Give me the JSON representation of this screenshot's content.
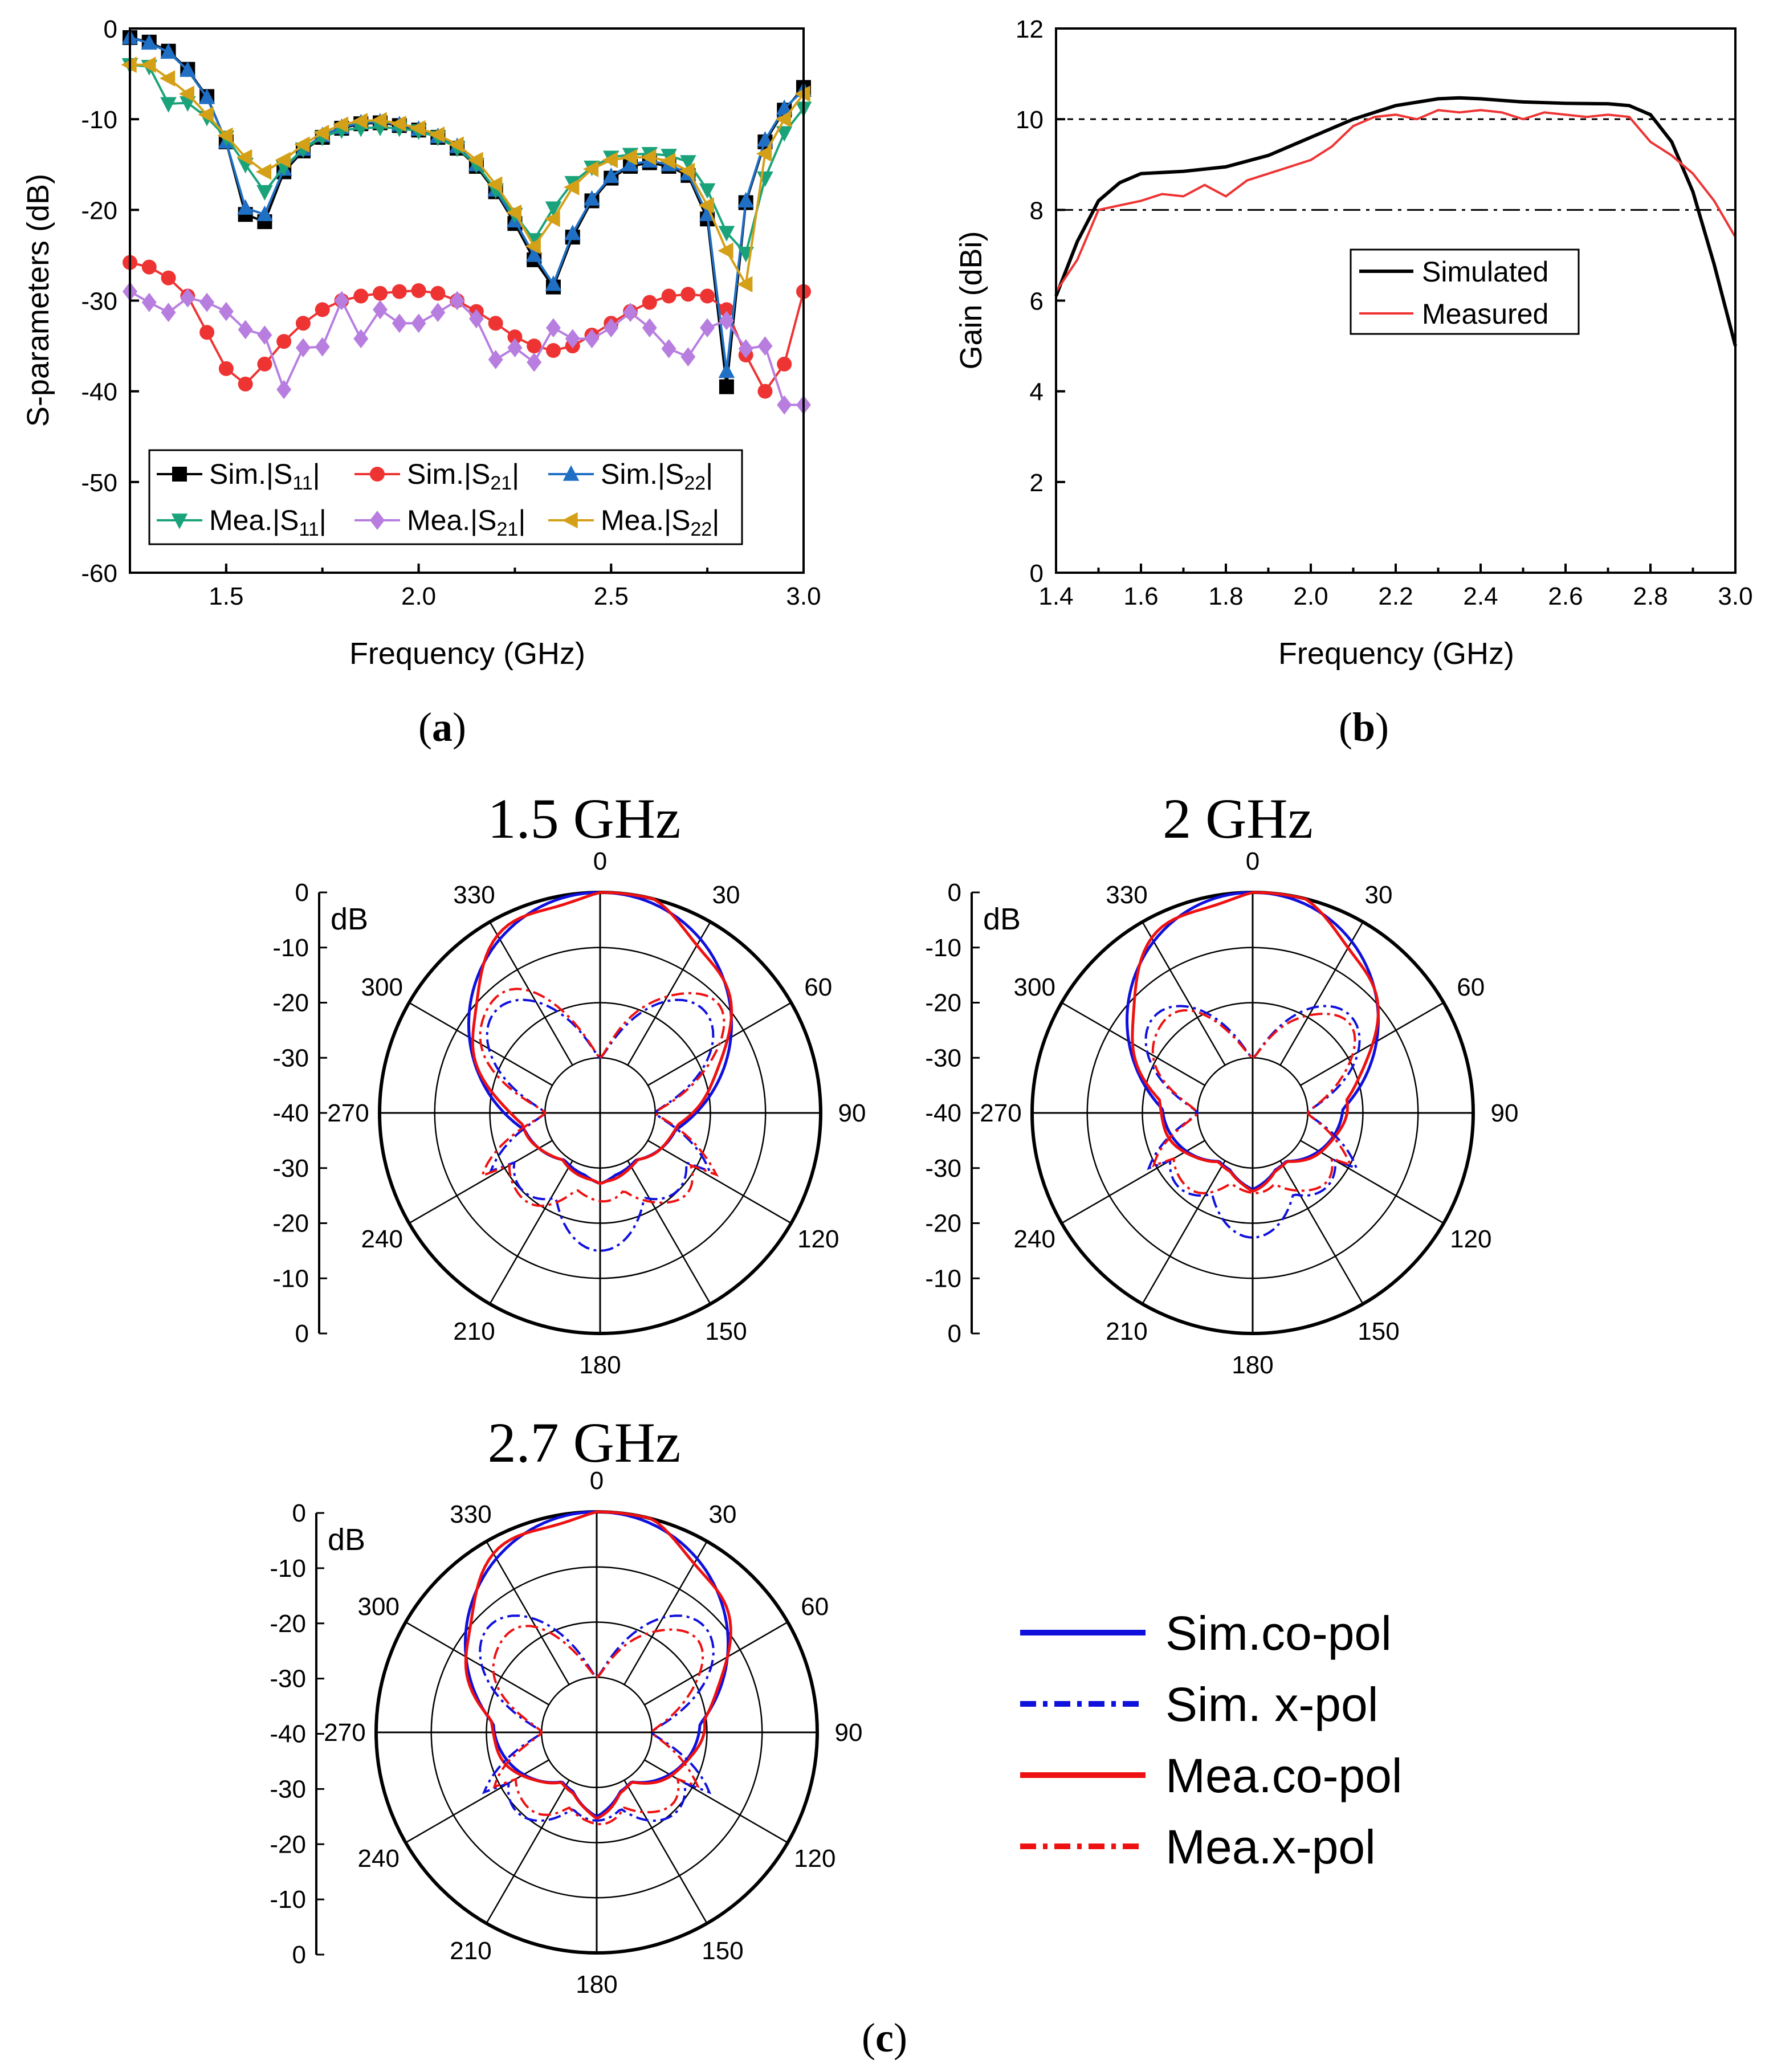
{
  "colors": {
    "black": "#000000",
    "red": "#ee3333",
    "blue": "#1f6fc4",
    "green": "#1aa37a",
    "purple": "#b77ee0",
    "gold": "#d4a017",
    "sim_blue": "#1010dd",
    "mea_red": "#ee1111"
  },
  "chart_data": [
    {
      "id": "a",
      "type": "line",
      "caption": "a",
      "xlabel": "Frequency (GHz)",
      "ylabel": "S-parameters (dB)",
      "xlim": [
        1.25,
        3.0
      ],
      "ylim": [
        -60,
        0
      ],
      "xticks": [
        "1.5",
        "2.0",
        "2.5",
        "3.0"
      ],
      "yticks": [
        "0",
        "-10",
        "-20",
        "-30",
        "-40",
        "-50",
        "-60"
      ],
      "legend": [
        "Sim.|S11|",
        "Sim.|S21|",
        "Sim.|S22|",
        "Mea.|S11|",
        "Mea.|S21|",
        "Mea.|S22|"
      ],
      "x": [
        1.25,
        1.3,
        1.35,
        1.4,
        1.45,
        1.5,
        1.55,
        1.6,
        1.65,
        1.7,
        1.75,
        1.8,
        1.85,
        1.9,
        1.95,
        2.0,
        2.05,
        2.1,
        2.15,
        2.2,
        2.25,
        2.3,
        2.35,
        2.4,
        2.45,
        2.5,
        2.55,
        2.6,
        2.65,
        2.7,
        2.75,
        2.8,
        2.85,
        2.9,
        2.95,
        3.0
      ],
      "series": [
        {
          "name": "Sim.|S11|",
          "marker": "square",
          "color": "#000000",
          "values": [
            -1,
            -1.5,
            -2.5,
            -4.5,
            -7.5,
            -12.5,
            -20.5,
            -21.3,
            -15.8,
            -13.5,
            -12,
            -11,
            -10.5,
            -10.4,
            -10.7,
            -11.2,
            -12,
            -13.2,
            -15.2,
            -18,
            -21.5,
            -25.5,
            -28.5,
            -23,
            -19,
            -16.5,
            -15.2,
            -14.8,
            -15.2,
            -16.2,
            -21,
            -39.5,
            -19.2,
            -12.5,
            -9,
            -6.5
          ]
        },
        {
          "name": "Sim.|S21|",
          "marker": "circle",
          "color": "#ee3333",
          "values": [
            -25.8,
            -26.3,
            -27.5,
            -29.5,
            -33.5,
            -37.5,
            -39.2,
            -37,
            -34.5,
            -32.5,
            -31,
            -30,
            -29.5,
            -29.2,
            -29,
            -28.9,
            -29.2,
            -30,
            -31.2,
            -32.5,
            -34,
            -35,
            -35.5,
            -35,
            -33.8,
            -32.5,
            -31.2,
            -30.2,
            -29.5,
            -29.3,
            -29.5,
            -31,
            -36,
            -40,
            -37,
            -29
          ]
        },
        {
          "name": "Sim.|S22|",
          "marker": "triangle-up",
          "color": "#1f6fc4",
          "values": [
            -1,
            -1.6,
            -2.6,
            -4.6,
            -7.6,
            -12.5,
            -19.8,
            -20.5,
            -15.5,
            -13.3,
            -11.8,
            -10.9,
            -10.4,
            -10.3,
            -10.6,
            -11.1,
            -11.9,
            -13,
            -15,
            -17.8,
            -21.2,
            -25,
            -28.2,
            -22.6,
            -18.8,
            -16.3,
            -15,
            -14.6,
            -15,
            -16,
            -20.5,
            -37.8,
            -19,
            -12.3,
            -8.8,
            -6.8
          ]
        },
        {
          "name": "Mea.|S11|",
          "marker": "triangle-down",
          "color": "#1aa37a",
          "values": [
            -4,
            -4.2,
            -8.3,
            -8.2,
            -9.8,
            -12,
            -15,
            -18,
            -15.3,
            -13.3,
            -12,
            -11.2,
            -11,
            -10.9,
            -11,
            -11.3,
            -12,
            -13.2,
            -15,
            -17.8,
            -20.5,
            -23.3,
            -19.8,
            -17,
            -15.3,
            -14.2,
            -13.9,
            -13.8,
            -14,
            -14.7,
            -17.8,
            -22.5,
            -24.8,
            -16.5,
            -11.5,
            -8.8
          ]
        },
        {
          "name": "Mea.|S21|",
          "marker": "diamond",
          "color": "#b77ee0",
          "values": [
            -29,
            -30.2,
            -31.3,
            -29.7,
            -30.2,
            -31.2,
            -33.2,
            -33.8,
            -39.8,
            -35.2,
            -35.1,
            -30,
            -34.2,
            -31,
            -32.5,
            -32.5,
            -31.3,
            -30,
            -32,
            -36.5,
            -35.2,
            -36.8,
            -33,
            -34.2,
            -34.2,
            -33,
            -31.3,
            -33,
            -35.3,
            -36.2,
            -33,
            -32.2,
            -35.3,
            -35,
            -41.5,
            -41.5
          ]
        },
        {
          "name": "Mea.|S22|",
          "marker": "triangle-left",
          "color": "#d4a017",
          "values": [
            -4,
            -4,
            -5.5,
            -7.2,
            -9.5,
            -11.8,
            -14.2,
            -15.8,
            -14.5,
            -12.8,
            -11.5,
            -10.6,
            -10.2,
            -10.1,
            -10.5,
            -11,
            -11.7,
            -12.8,
            -14.5,
            -17.2,
            -20.3,
            -24,
            -21,
            -17.5,
            -15.5,
            -14.5,
            -14.2,
            -14.2,
            -14.6,
            -15.7,
            -19.5,
            -24.5,
            -28.2,
            -13.8,
            -10,
            -7.2
          ]
        }
      ]
    },
    {
      "id": "b",
      "type": "line",
      "caption": "b",
      "xlabel": "Frequency (GHz)",
      "ylabel": "Gain (dBi)",
      "xlim": [
        1.4,
        3.0
      ],
      "ylim": [
        0,
        12
      ],
      "xticks": [
        "1.4",
        "1.6",
        "1.8",
        "2.0",
        "2.2",
        "2.4",
        "2.6",
        "2.8",
        "3.0"
      ],
      "yticks": [
        "0",
        "2",
        "4",
        "6",
        "8",
        "10",
        "12"
      ],
      "reference_lines": [
        10,
        8
      ],
      "legend": [
        "Simulated",
        "Measured"
      ],
      "series": [
        {
          "name": "Simulated",
          "color": "#000000",
          "x": [
            1.4,
            1.45,
            1.5,
            1.55,
            1.6,
            1.7,
            1.8,
            1.9,
            2.0,
            2.1,
            2.2,
            2.3,
            2.35,
            2.4,
            2.5,
            2.6,
            2.7,
            2.75,
            2.8,
            2.85,
            2.9,
            2.95,
            3.0
          ],
          "values": [
            6.1,
            7.3,
            8.2,
            8.6,
            8.8,
            8.85,
            8.95,
            9.2,
            9.6,
            10.0,
            10.3,
            10.45,
            10.47,
            10.45,
            10.38,
            10.35,
            10.34,
            10.3,
            10.1,
            9.5,
            8.4,
            6.8,
            5.0
          ]
        },
        {
          "name": "Measured",
          "color": "#ee3333",
          "x": [
            1.4,
            1.45,
            1.5,
            1.55,
            1.6,
            1.65,
            1.7,
            1.75,
            1.8,
            1.85,
            1.9,
            1.95,
            2.0,
            2.05,
            2.1,
            2.15,
            2.2,
            2.25,
            2.3,
            2.35,
            2.4,
            2.45,
            2.5,
            2.55,
            2.6,
            2.65,
            2.7,
            2.75,
            2.8,
            2.85,
            2.9,
            2.95,
            3.0
          ],
          "values": [
            6.2,
            6.9,
            8.0,
            8.1,
            8.2,
            8.35,
            8.3,
            8.55,
            8.3,
            8.65,
            8.8,
            8.95,
            9.1,
            9.4,
            9.85,
            10.05,
            10.1,
            10.0,
            10.2,
            10.15,
            10.2,
            10.15,
            10.0,
            10.15,
            10.1,
            10.05,
            10.1,
            10.05,
            9.5,
            9.2,
            8.8,
            8.2,
            7.4
          ]
        }
      ]
    },
    {
      "id": "c",
      "type": "polar",
      "caption": "c",
      "radial_unit": "dB",
      "radial_range": [
        -40,
        0
      ],
      "radial_ticks_top": [
        "0",
        "-10",
        "-20",
        "-30",
        "-40"
      ],
      "radial_ticks_bottom": [
        "-30",
        "-20",
        "-10",
        "0"
      ],
      "angle_ticks": [
        "0",
        "30",
        "60",
        "90",
        "120",
        "150",
        "180",
        "210",
        "240",
        "270",
        "300",
        "330"
      ],
      "legend": [
        "Sim.co-pol",
        "Sim. x-pol",
        "Mea.co-pol",
        "Mea.x-pol"
      ],
      "plots": [
        {
          "title": "1.5 GHz",
          "sim_co": {
            "beam_width": 1.55,
            "side": 0.16,
            "back": 0.06
          },
          "sim_x": {
            "lobe_peak": 0.55,
            "lobe_angle": 75,
            "back": 0.5
          },
          "mea_co": {
            "beam_width": 1.5,
            "side": 0.16,
            "back": 0.08
          },
          "mea_x": {
            "lobe_peak": 0.62,
            "lobe_angle": 40,
            "back": 0.2
          }
        },
        {
          "title": "2 GHz",
          "sim_co": {
            "beam_width": 1.45,
            "side": 0.22,
            "back": 0.05
          },
          "sim_x": {
            "lobe_peak": 0.5,
            "lobe_angle": 60,
            "back": 0.42
          },
          "mea_co": {
            "beam_width": 1.4,
            "side": 0.24,
            "back": 0.06
          },
          "mea_x": {
            "lobe_peak": 0.45,
            "lobe_angle": 40,
            "back": 0.15
          }
        },
        {
          "title": "2.7 GHz",
          "sim_co": {
            "beam_width": 1.55,
            "side": 0.3,
            "back": 0.07
          },
          "sim_x": {
            "lobe_peak": 0.58,
            "lobe_angle": 35,
            "back": 0.2
          },
          "mea_co": {
            "beam_width": 1.55,
            "side": 0.32,
            "back": 0.08
          },
          "mea_x": {
            "lobe_peak": 0.48,
            "lobe_angle": 50,
            "back": 0.22
          }
        }
      ]
    }
  ]
}
